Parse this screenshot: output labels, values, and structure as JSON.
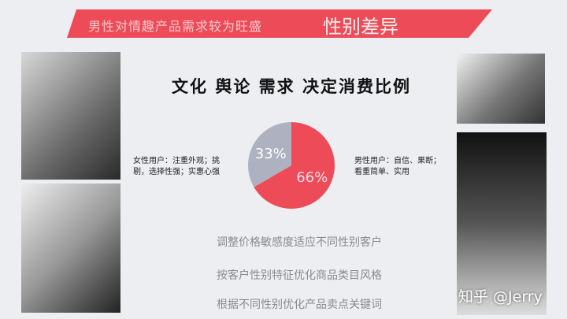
{
  "banner": {
    "subtitle": "男性对情趣产品需求较为旺盛",
    "title": "性别差异"
  },
  "headline": "文化 舆论 需求 决定消费比例",
  "chart_data": {
    "type": "pie",
    "categories": [
      "男性用户",
      "女性用户"
    ],
    "values": [
      66,
      33
    ],
    "labels": [
      "66%",
      "33%"
    ],
    "colors": [
      "#ee4b58",
      "#aeb1bf"
    ],
    "annotations": {
      "female": "女性用户：注重外观；挑剔，选择性强；实惠心强",
      "male": "男性用户：自信、果断；看重简单、实用"
    }
  },
  "desc": {
    "female_line1": "女性用户：注重外观；挑",
    "female_line2": "剔，选择性强；实惠心强",
    "male_line1": "男性用户：自信、果断；",
    "male_line2": "看重简单、实用"
  },
  "tips": [
    "调整价格敏感度适应不同性别客户",
    "按客户性别特征优化商品类目风格",
    "根据不同性别优化产品卖点关键词"
  ],
  "watermark": "知乎 @Jerry"
}
